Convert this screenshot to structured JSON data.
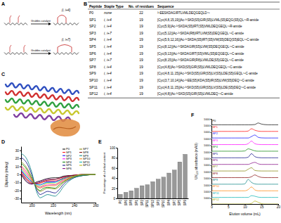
{
  "panels": [
    "A",
    "B",
    "C",
    "D",
    "E",
    "F"
  ],
  "diagram": {
    "rows": [
      {
        "staple": "(i, i+4)",
        "reagent": "Grubbs catalyst"
      },
      {
        "staple": "(i, i+7)",
        "reagent": "Grubbs catalyst"
      }
    ]
  },
  "table": {
    "header": [
      "Peptide",
      "Staple Type",
      "No. of residues",
      "Sequence"
    ],
    "rows": [
      [
        "P0",
        "none",
        22,
        "²⁸EESKDAGIRTLVMLDEQGEQLD⁴⁹"
      ],
      [
        "SP1",
        "i, i+4",
        19,
        "[Cyc(4,8,15,19)]Ac-³¹SKD(S5)GIR(S5)LVML(S5)EQG(S5)QL⁴⁹R-amide"
      ],
      [
        "SP2",
        "i, i+4",
        19,
        "[Cyc(5,9)]Ac-³¹SKDA(S5)IRT(S5)VMLDEQGEQL⁴⁹R-amide"
      ],
      [
        "SP3",
        "i, i+7",
        19,
        "[Cyc(5,12)]Ac-³¹SKDA(R8)IRTLVM(S5)DEQGEQL⁴⁹C-amide"
      ],
      [
        "SP4",
        "i, i+4",
        19,
        "[Cyc(5,9,12,16)]Ac-³¹SKDA(S5)IRT(S5)VM(S5)DEQ(S5)EQL⁴⁹C-amide"
      ],
      [
        "SP5",
        "i, i+4",
        19,
        "[Cyc(8,12)]Ac-³¹SKDAGIR(S5)LVM(S5)DEQGEQL⁴⁹C-amide"
      ],
      [
        "SP6",
        "i, i+4",
        19,
        "[Cyc(9,13)]Ac-³¹SKDAGIRT(S5)VML(S5)EQGEQL⁴⁹C-amide"
      ],
      [
        "SP7",
        "i, i+7",
        19,
        "[Cyc(8,15)]Ac-³¹SKDAGIR(R8)LVMLDE(S5)GEQL⁴⁹C-amide"
      ],
      [
        "SP8",
        "i, i+4",
        19,
        "[Cyc(4,8)]Ac-³¹SKD(S5)GIR(S5)LVMLDEQGEQL⁴⁹C-amide"
      ],
      [
        "SP9",
        "i, i+4",
        19,
        "[Cyc(4,8,11,15)]Ac-³¹SKD(S5)GIR(S5)LV(S5)LDE(S5)GEQL⁴⁹C-amide"
      ],
      [
        "SP10",
        "i, i+4",
        19,
        "[Cyc(3,7,10,14)]Ac-³¹EE(S5)KDA(S5)IR(S5)LVM(S5)DEQ⁴⁹C-amide"
      ],
      [
        "SP11",
        "i, i+4",
        19,
        "[Cyc(4,8,11,15)]Ac-³¹SKD(S5)GIR(S5)LV(S5)LDE(S5)DEQ⁴⁹C-amide"
      ],
      [
        "SP12",
        "i, i+4",
        19,
        "[Cyc(4,8)]Ac-³¹SKD(S5)GIR(S5)LVMLDEQ⁴⁹C-amide"
      ]
    ]
  },
  "chart_data": [
    {
      "type": "line",
      "xlabel": "Wavelength (nm)",
      "ylabel": "Ellipticity (mdeg)",
      "x": [
        190,
        195,
        200,
        205,
        208,
        210,
        215,
        222,
        225,
        230,
        240,
        250,
        260
      ],
      "xlim": [
        190,
        260
      ],
      "xticks": [
        200,
        220,
        240,
        260
      ],
      "ylim": [
        -35,
        35
      ],
      "yticks": [
        -30,
        -20,
        -10,
        0,
        10,
        20,
        30
      ],
      "legend": "top-right",
      "series": [
        {
          "name": "P0",
          "color": "#000000",
          "values": [
            0,
            -9,
            -12,
            -9,
            -8,
            -7,
            -5,
            -4,
            -4,
            -2,
            -1,
            0,
            0
          ]
        },
        {
          "name": "SP1",
          "color": "#ff0000",
          "values": [
            4,
            -5,
            -10,
            -11,
            -11,
            -10,
            -8,
            -8,
            -7,
            -4,
            -1,
            0,
            0
          ]
        },
        {
          "name": "SP2",
          "color": "#0000ff",
          "values": [
            5,
            -3,
            -9,
            -12,
            -13,
            -12,
            -9,
            -9,
            -8,
            -5,
            -2,
            0,
            0
          ]
        },
        {
          "name": "SP3",
          "color": "#ff00ff",
          "values": [
            10,
            2,
            -7,
            -15,
            -16,
            -15,
            -13,
            -13,
            -11,
            -7,
            -2,
            0,
            0
          ]
        },
        {
          "name": "SP4",
          "color": "#008000",
          "values": [
            14,
            7,
            -5,
            -17,
            -20,
            -18,
            -16,
            -17,
            -14,
            -9,
            -3,
            -1,
            0
          ]
        },
        {
          "name": "SP5",
          "color": "#000080",
          "values": [
            21,
            15,
            0,
            -20,
            -25,
            -24,
            -21,
            -23,
            -20,
            -12,
            -4,
            -1,
            0
          ]
        },
        {
          "name": "SP6",
          "color": "#800080",
          "values": [
            1,
            -8,
            -12,
            -10,
            -9,
            -8,
            -6,
            -6,
            -5,
            -3,
            -1,
            0,
            0
          ]
        },
        {
          "name": "SP7",
          "color": "#808000",
          "values": [
            16,
            9,
            -3,
            -18,
            -21,
            -20,
            -17,
            -18,
            -16,
            -10,
            -3,
            -1,
            0
          ]
        },
        {
          "name": "SP8",
          "color": "#800000",
          "values": [
            2,
            -6,
            -11,
            -11,
            -10,
            -9,
            -7,
            -6,
            -5,
            -3,
            -1,
            0,
            0
          ]
        },
        {
          "name": "SP9",
          "color": "#008080",
          "values": [
            26,
            20,
            3,
            -23,
            -29,
            -28,
            -25,
            -27,
            -24,
            -15,
            -4,
            -1,
            0
          ]
        },
        {
          "name": "SP10",
          "color": "#ff8000",
          "values": [
            11,
            4,
            -6,
            -15,
            -17,
            -16,
            -14,
            -14,
            -12,
            -8,
            -2,
            0,
            0
          ]
        },
        {
          "name": "SP11",
          "color": "#00b0b0",
          "values": [
            6,
            -2,
            -9,
            -13,
            -13,
            -12,
            -10,
            -10,
            -8,
            -5,
            -2,
            0,
            0
          ]
        },
        {
          "name": "SP12",
          "color": "#b0b000",
          "values": [
            8,
            0,
            -8,
            -14,
            -15,
            -14,
            -11,
            -12,
            -10,
            -6,
            -2,
            0,
            0
          ]
        }
      ]
    },
    {
      "type": "bar",
      "ylabel": "Percentage of α-helical content",
      "categories": [
        "P0",
        "SP6",
        "SP8",
        "SP1",
        "SP2",
        "SP11",
        "SP12",
        "SP3",
        "SP10",
        "SP4",
        "SP7",
        "SP5",
        "SP9"
      ],
      "values": [
        8,
        12,
        15,
        20,
        25,
        27,
        33,
        38,
        42,
        50,
        56,
        72,
        87
      ],
      "color": "#999999",
      "ylim": [
        0,
        100
      ],
      "yticks": [
        0,
        20,
        40,
        60,
        80,
        100
      ]
    },
    {
      "type": "line",
      "xlabel": "Elution volume (mL)",
      "ylabel": "UV₂₂₀ absorbance (mAU)",
      "x": [
        0,
        1,
        2,
        3,
        4,
        5,
        6,
        7,
        8,
        9,
        10,
        11,
        12,
        13,
        14,
        15,
        16,
        17,
        18,
        19,
        20
      ],
      "xlim": [
        0,
        20
      ],
      "xticks": [
        0,
        5,
        10,
        15,
        20
      ],
      "ylim": [
        0,
        1000
      ],
      "yticks": [
        1000
      ],
      "series": [
        {
          "name": "P0",
          "color": "#000000",
          "values": [
            0,
            0,
            0,
            0,
            0,
            0,
            0,
            0,
            0,
            0,
            0,
            0,
            0,
            40,
            300,
            120,
            30,
            0,
            0,
            0,
            0
          ]
        },
        {
          "name": "SP1",
          "color": "#ff0000",
          "values": [
            0,
            0,
            0,
            0,
            0,
            0,
            0,
            0,
            0,
            0,
            0,
            60,
            450,
            200,
            50,
            0,
            0,
            0,
            0,
            0,
            0
          ]
        },
        {
          "name": "SP2",
          "color": "#0000ff",
          "values": [
            0,
            0,
            0,
            0,
            0,
            0,
            0,
            0,
            0,
            0,
            0,
            0,
            250,
            500,
            120,
            20,
            0,
            0,
            0,
            0,
            0
          ]
        },
        {
          "name": "SP3",
          "color": "#ff00ff",
          "values": [
            0,
            0,
            0,
            0,
            0,
            0,
            0,
            0,
            0,
            0,
            0,
            150,
            600,
            150,
            30,
            0,
            0,
            0,
            0,
            0,
            0
          ]
        },
        {
          "name": "SP4",
          "color": "#008000",
          "values": [
            0,
            0,
            0,
            0,
            0,
            0,
            0,
            0,
            0,
            0,
            40,
            400,
            250,
            60,
            0,
            0,
            0,
            0,
            0,
            0,
            0
          ]
        },
        {
          "name": "SP5",
          "color": "#000080",
          "values": [
            0,
            0,
            0,
            0,
            0,
            0,
            0,
            0,
            0,
            0,
            0,
            100,
            700,
            200,
            40,
            0,
            0,
            0,
            0,
            0,
            0
          ]
        },
        {
          "name": "SP6",
          "color": "#800080",
          "values": [
            0,
            0,
            0,
            0,
            0,
            0,
            0,
            0,
            0,
            0,
            0,
            0,
            200,
            350,
            100,
            0,
            0,
            0,
            0,
            0,
            0
          ]
        },
        {
          "name": "SP7",
          "color": "#808000",
          "values": [
            0,
            0,
            0,
            0,
            0,
            0,
            0,
            0,
            0,
            0,
            0,
            300,
            550,
            100,
            20,
            0,
            0,
            0,
            0,
            0,
            0
          ]
        },
        {
          "name": "SP8",
          "color": "#800000",
          "values": [
            0,
            0,
            0,
            0,
            0,
            0,
            0,
            0,
            0,
            0,
            0,
            0,
            150,
            450,
            200,
            30,
            0,
            0,
            0,
            0,
            0
          ]
        },
        {
          "name": "SP9",
          "color": "#008080",
          "values": [
            0,
            0,
            0,
            0,
            0,
            0,
            0,
            0,
            0,
            0,
            60,
            800,
            300,
            50,
            0,
            0,
            0,
            0,
            0,
            0,
            0
          ]
        },
        {
          "name": "SP10",
          "color": "#ff8000",
          "values": [
            0,
            0,
            0,
            0,
            0,
            0,
            0,
            0,
            0,
            0,
            0,
            200,
            650,
            150,
            0,
            0,
            0,
            0,
            0,
            0,
            0
          ]
        },
        {
          "name": "SP11",
          "color": "#00b0b0",
          "values": [
            0,
            0,
            0,
            0,
            0,
            0,
            0,
            0,
            0,
            0,
            0,
            0,
            300,
            200,
            50,
            0,
            0,
            0,
            0,
            0,
            0
          ]
        },
        {
          "name": "SP12",
          "color": "#b0b000",
          "values": [
            0,
            0,
            0,
            0,
            0,
            0,
            0,
            0,
            0,
            0,
            0,
            0,
            100,
            500,
            300,
            60,
            0,
            0,
            0,
            0,
            0
          ]
        }
      ]
    }
  ]
}
